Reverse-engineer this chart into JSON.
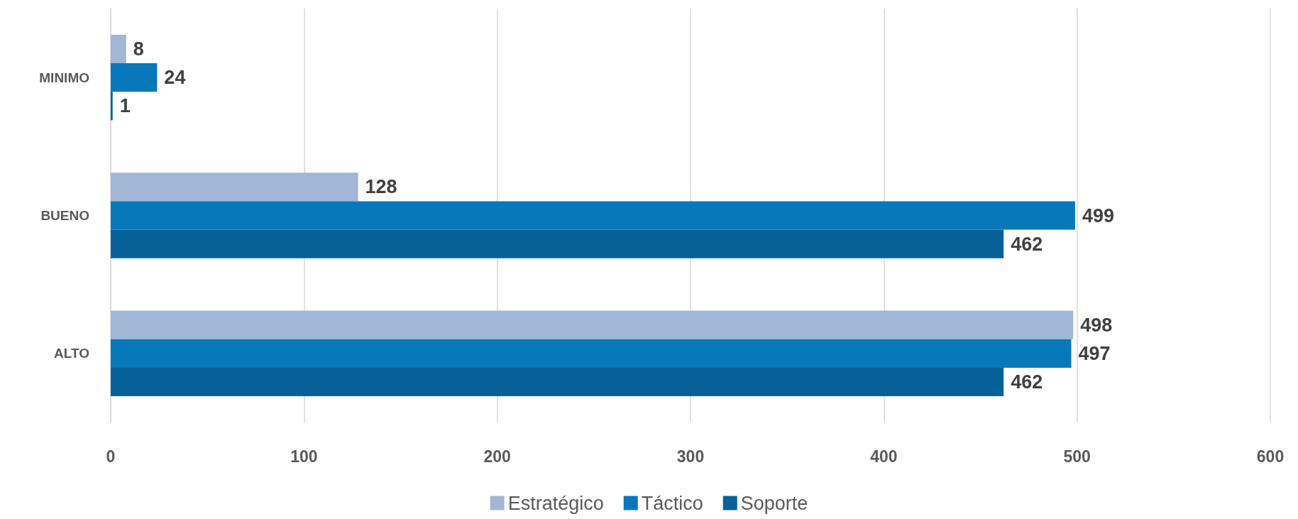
{
  "chart_data": {
    "type": "bar",
    "orientation": "horizontal",
    "categories": [
      "MINIMO",
      "BUENO",
      "ALTO"
    ],
    "series": [
      {
        "name": "Estratégico",
        "color": "#a2b6d6",
        "values": [
          8,
          128,
          498
        ]
      },
      {
        "name": "Táctico",
        "color": "#0878bb",
        "values": [
          24,
          499,
          497
        ]
      },
      {
        "name": "Soporte",
        "color": "#066199",
        "values": [
          1,
          462,
          462
        ]
      }
    ],
    "xlim": [
      0,
      600
    ],
    "xticks": [
      0,
      100,
      200,
      300,
      400,
      500,
      600
    ],
    "grid": "x",
    "legend": "bottom",
    "data_labels": true
  }
}
